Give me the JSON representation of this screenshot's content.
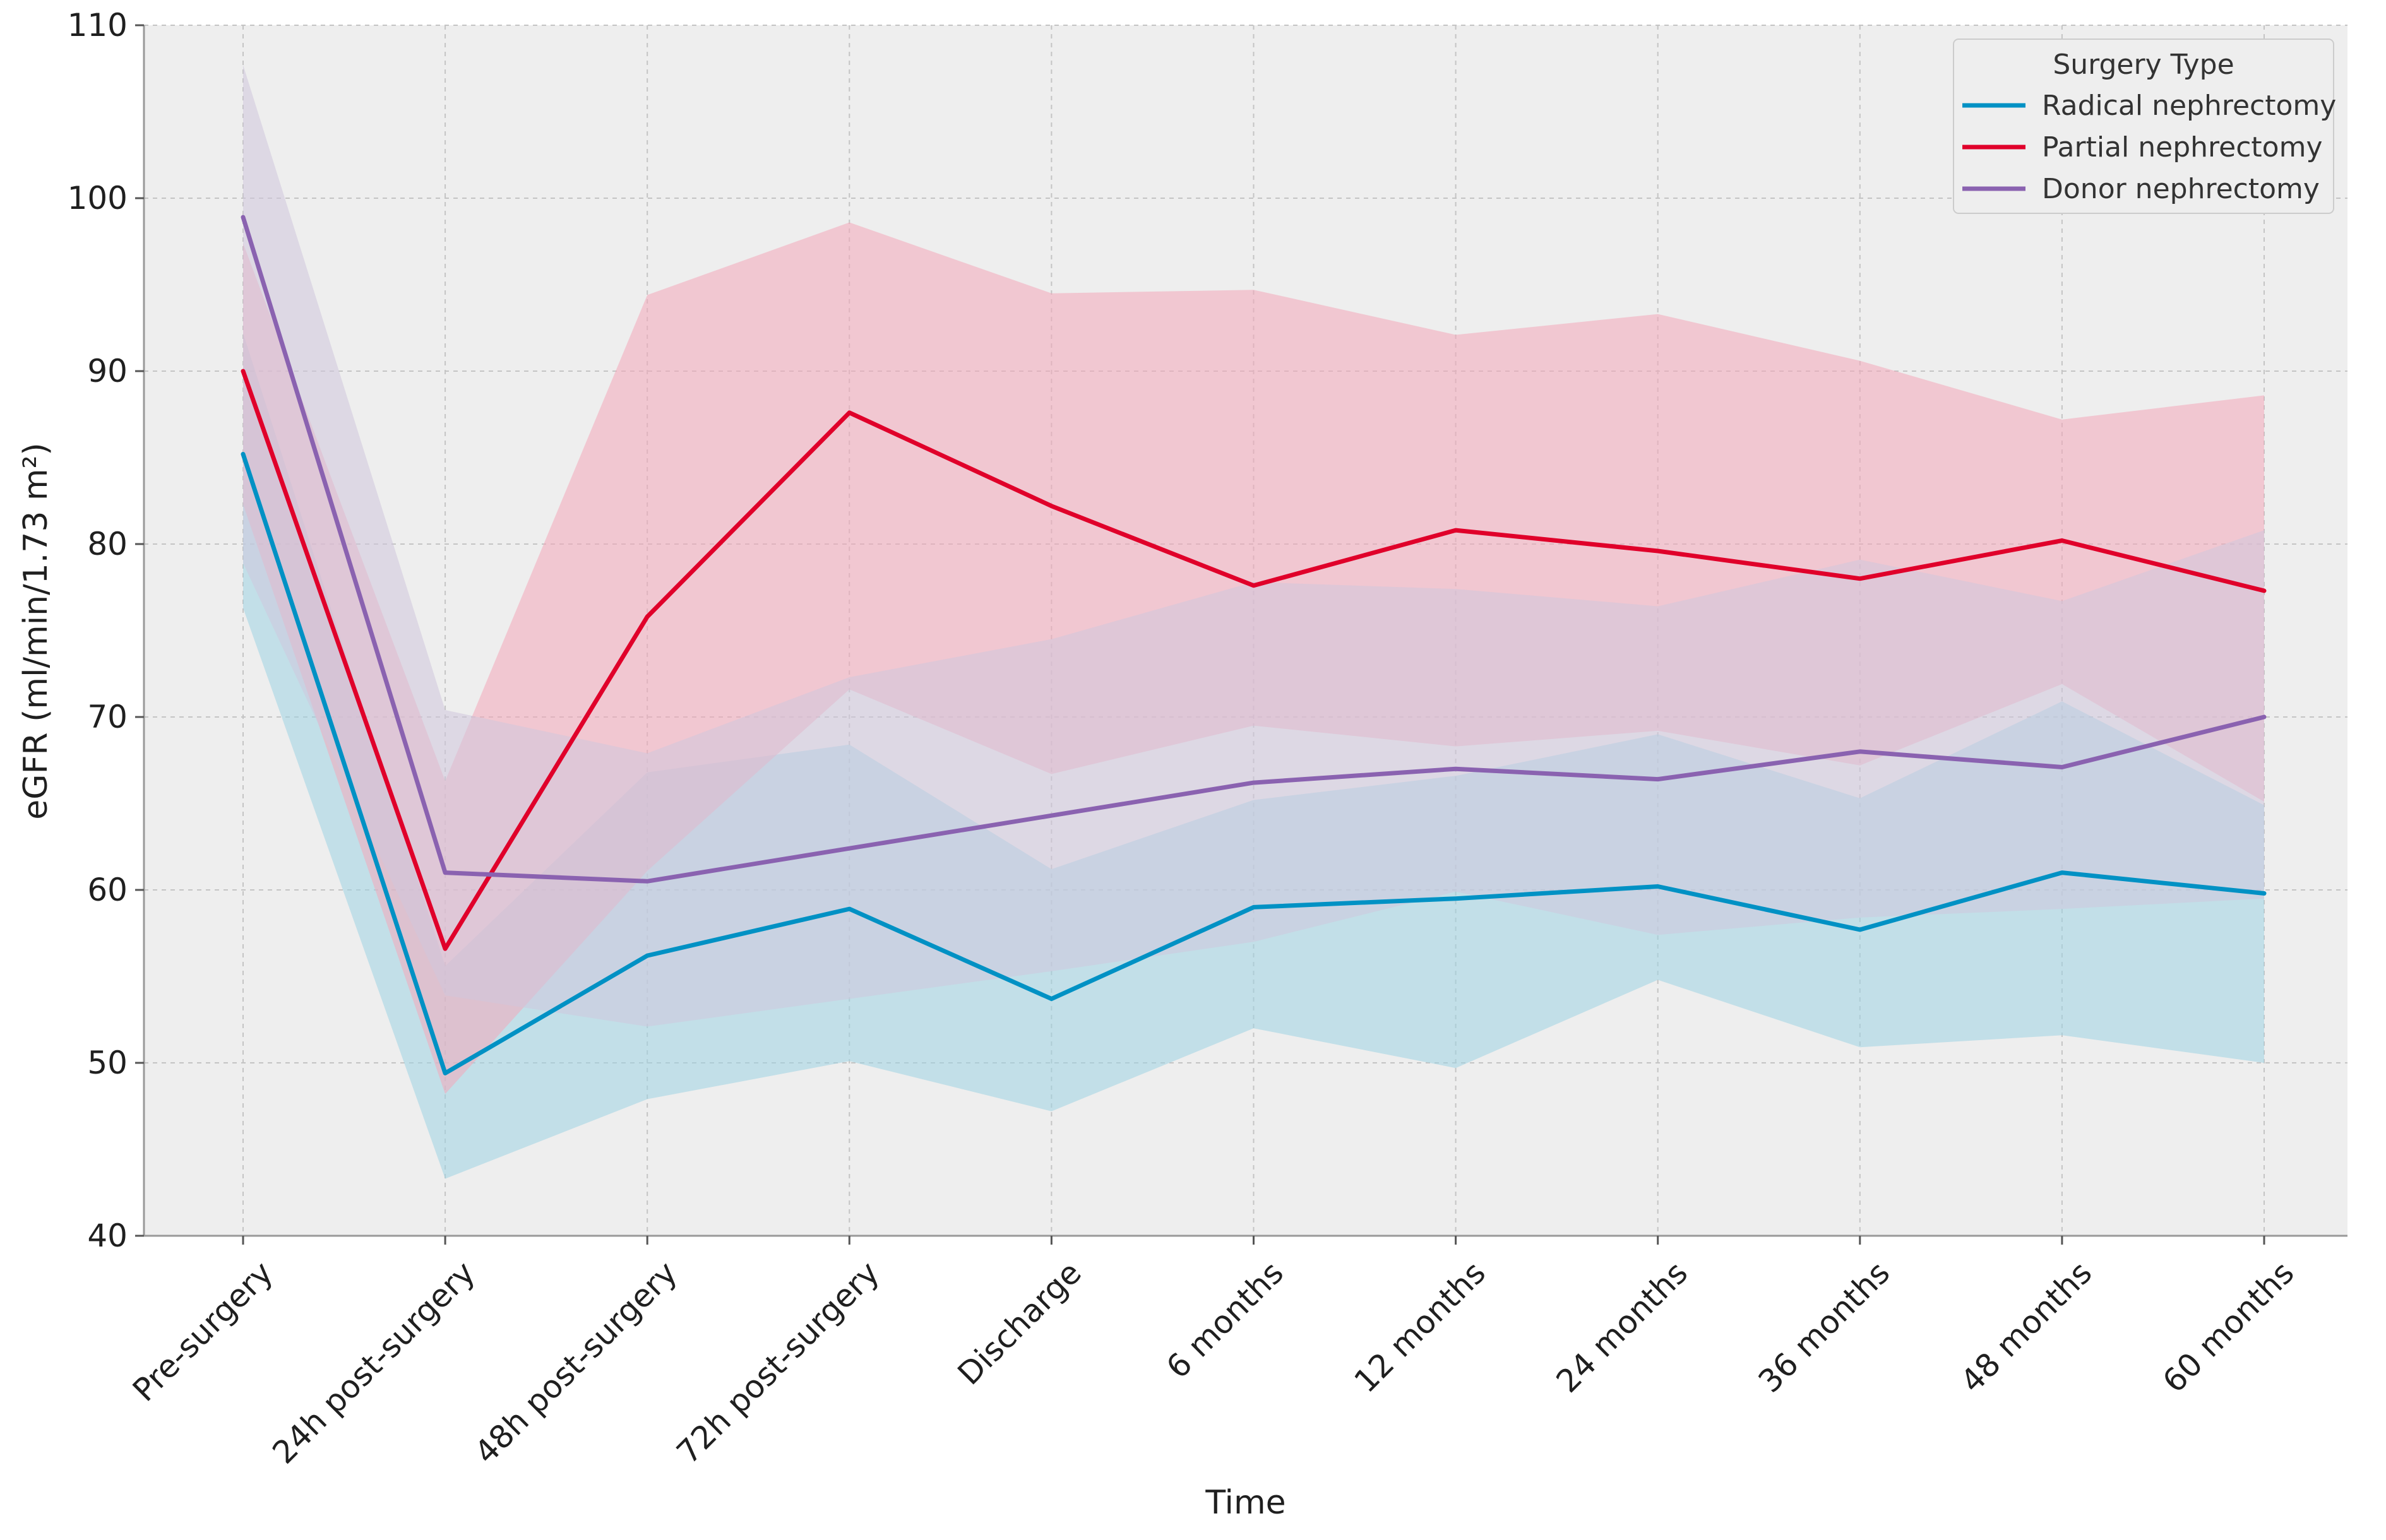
{
  "chart_data": {
    "type": "line",
    "title": "",
    "xlabel": "Time",
    "ylabel": "eGFR (ml/min/1.73 m²)",
    "ylim": [
      40,
      110
    ],
    "yticks": [
      40,
      50,
      60,
      70,
      80,
      90,
      100,
      110
    ],
    "grid": true,
    "legend_title": "Surgery Type",
    "legend_position": "top-right",
    "categories": [
      "Pre-surgery",
      "24h post-surgery",
      "48h post-surgery",
      "72h post-surgery",
      "Discharge",
      "6 months",
      "12 months",
      "24 months",
      "36 months",
      "48 months",
      "60 months"
    ],
    "series": [
      {
        "name": "Radical nephrectomy",
        "color": "#0091c4",
        "band_color": "#9fd3e3",
        "values": [
          85.2,
          49.4,
          56.2,
          58.9,
          53.7,
          59.0,
          59.5,
          60.2,
          57.7,
          61.0,
          59.8
        ],
        "lower": [
          76.3,
          43.3,
          47.9,
          50.1,
          47.2,
          52.0,
          49.7,
          54.8,
          50.9,
          51.6,
          50.0
        ],
        "upper": [
          92.2,
          55.6,
          66.8,
          68.4,
          61.2,
          65.2,
          66.6,
          69.0,
          65.3,
          70.9,
          64.9
        ]
      },
      {
        "name": "Partial nephrectomy",
        "color": "#e0002a",
        "band_color": "#f4a8b9",
        "values": [
          90.0,
          56.6,
          75.8,
          87.6,
          82.2,
          77.6,
          80.8,
          79.6,
          78.0,
          80.2,
          77.3
        ],
        "lower": [
          82.3,
          48.2,
          61.1,
          71.6,
          66.7,
          69.5,
          68.3,
          69.2,
          67.2,
          71.9,
          65.1
        ],
        "upper": [
          97.4,
          66.3,
          94.4,
          98.6,
          94.5,
          94.7,
          92.1,
          93.3,
          90.6,
          87.2,
          88.6
        ]
      },
      {
        "name": "Donor nephrectomy",
        "color": "#8a62b0",
        "band_color": "#d0c6dd",
        "values": [
          98.9,
          61.0,
          60.5,
          62.4,
          64.3,
          66.2,
          67.0,
          66.4,
          68.0,
          67.1,
          70.0
        ],
        "lower": [
          78.9,
          53.9,
          52.1,
          53.7,
          55.3,
          57.0,
          59.9,
          57.4,
          58.4,
          58.9,
          59.5
        ],
        "upper": [
          107.7,
          70.4,
          67.9,
          72.3,
          74.5,
          77.8,
          77.4,
          76.4,
          79.1,
          76.7,
          80.8
        ]
      }
    ]
  }
}
